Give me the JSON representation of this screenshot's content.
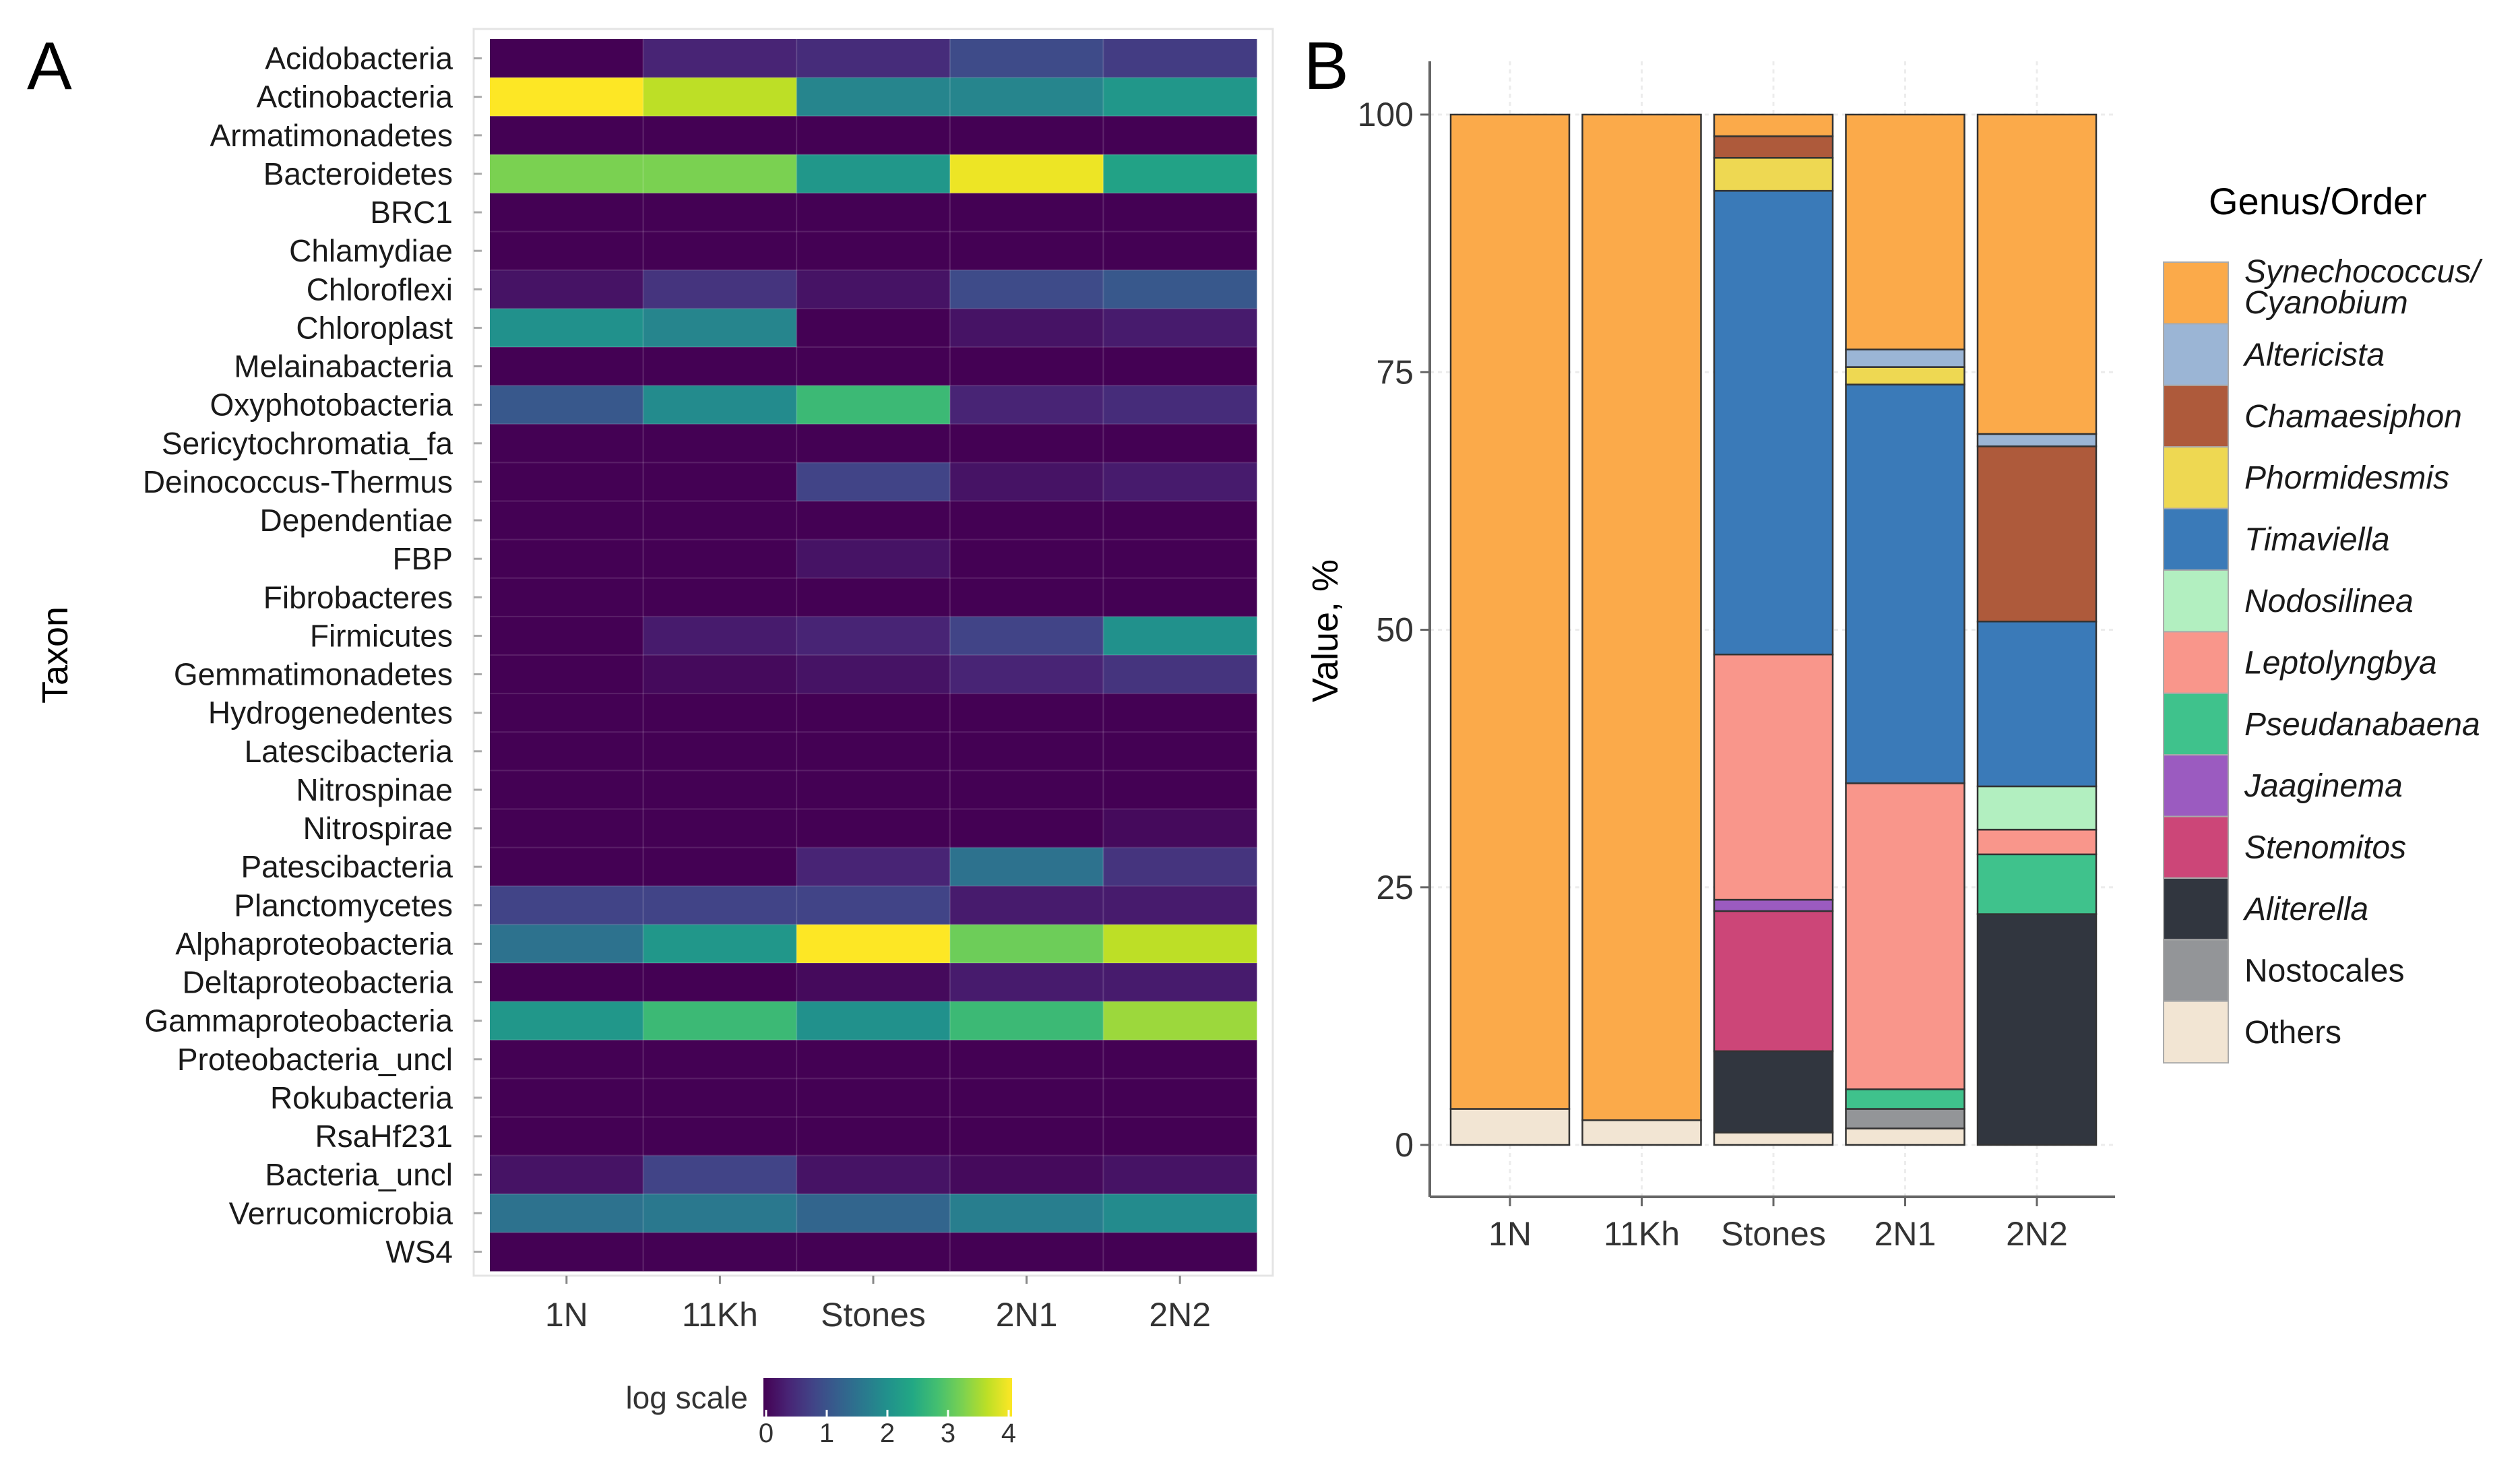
{
  "chart_data": [
    {
      "type": "heatmap",
      "panel_label": "A",
      "ylabel": "Taxon",
      "x_categories": [
        "1N",
        "11Kh",
        "Stones",
        "2N1",
        "2N2"
      ],
      "y_categories": [
        "Acidobacteria",
        "Actinobacteria",
        "Armatimonadetes",
        "Bacteroidetes",
        "BRC1",
        "Chlamydiae",
        "Chloroflexi",
        "Chloroplast",
        "Melainabacteria",
        "Oxyphotobacteria",
        "Sericytochromatia_fa",
        "Deinococcus-Thermus",
        "Dependentiae",
        "FBP",
        "Fibrobacteres",
        "Firmicutes",
        "Gemmatimonadetes",
        "Hydrogenedentes",
        "Latescibacteria",
        "Nitrospinae",
        "Nitrospirae",
        "Patescibacteria",
        "Planctomycetes",
        "Alphaproteobacteria",
        "Deltaproteobacteria",
        "Gammaproteobacteria",
        "Proteobacteria_uncl",
        "Rokubacteria",
        "RsaHf231",
        "Bacteria_uncl",
        "Verrucomicrobia",
        "WS4"
      ],
      "values": [
        [
          0,
          0.4,
          0.5,
          0.9,
          0.7
        ],
        [
          4.0,
          3.6,
          1.8,
          1.8,
          2.1
        ],
        [
          0,
          0,
          0,
          0,
          0
        ],
        [
          3.2,
          3.2,
          2.1,
          3.9,
          2.3
        ],
        [
          0,
          0,
          0,
          0,
          0
        ],
        [
          0,
          0,
          0,
          0,
          0
        ],
        [
          0.2,
          0.6,
          0.2,
          0.9,
          1.1
        ],
        [
          2.0,
          1.8,
          0,
          0.2,
          0.3
        ],
        [
          0,
          0,
          0,
          0,
          0
        ],
        [
          1.1,
          1.9,
          2.7,
          0.4,
          0.5
        ],
        [
          0,
          0,
          0,
          0,
          0
        ],
        [
          0,
          0,
          0.8,
          0.2,
          0.3
        ],
        [
          0,
          0,
          0,
          0,
          0
        ],
        [
          0,
          0,
          0.2,
          0,
          0
        ],
        [
          0,
          0,
          0,
          0,
          0
        ],
        [
          0,
          0.3,
          0.4,
          0.8,
          2.0
        ],
        [
          0,
          0.1,
          0.2,
          0.4,
          0.6
        ],
        [
          0,
          0,
          0,
          0,
          0
        ],
        [
          0,
          0,
          0,
          0,
          0
        ],
        [
          0,
          0,
          0,
          0,
          0
        ],
        [
          0,
          0,
          0,
          0,
          0.1
        ],
        [
          0,
          0,
          0.4,
          1.5,
          0.6
        ],
        [
          0.8,
          0.8,
          0.8,
          0.3,
          0.3
        ],
        [
          1.5,
          2.1,
          4.0,
          3.1,
          3.6
        ],
        [
          0,
          0,
          0.1,
          0.3,
          0.3
        ],
        [
          2.1,
          2.7,
          2.0,
          2.7,
          3.4
        ],
        [
          0,
          0,
          0,
          0,
          0
        ],
        [
          0,
          0,
          0,
          0,
          0
        ],
        [
          0,
          0,
          0,
          0,
          0
        ],
        [
          0.2,
          0.8,
          0.2,
          0.1,
          0.2
        ],
        [
          1.5,
          1.6,
          1.3,
          1.7,
          1.9
        ],
        [
          0,
          0,
          0,
          0,
          0
        ]
      ],
      "colorbar": {
        "title": "log scale",
        "range": [
          0,
          4
        ],
        "ticks": [
          "0",
          "1",
          "2",
          "3",
          "4"
        ],
        "colormap": "viridis"
      }
    },
    {
      "type": "bar",
      "stacked": true,
      "panel_label": "B",
      "ylabel": "Value, %",
      "ylim": [
        0,
        100
      ],
      "yticks": [
        "0",
        "25",
        "50",
        "75",
        "100"
      ],
      "grid": true,
      "categories": [
        "1N",
        "11Kh",
        "Stones",
        "2N1",
        "2N2"
      ],
      "legend": {
        "title": "Genus/Order",
        "placement": "right"
      },
      "series": [
        {
          "name": "Others",
          "italic": false,
          "color": "#F2E5D3",
          "values": [
            3.5,
            2.4,
            1.2,
            1.6,
            0
          ]
        },
        {
          "name": "Nostocales",
          "italic": false,
          "color": "#939598",
          "values": [
            0,
            0,
            0,
            1.9,
            0
          ]
        },
        {
          "name": "Aliterella",
          "italic": true,
          "color": "#31363F",
          "values": [
            0,
            0,
            7.9,
            0,
            22.4
          ]
        },
        {
          "name": "Stenomitos",
          "italic": true,
          "color": "#CC4678",
          "values": [
            0,
            0,
            13.6,
            0,
            0
          ]
        },
        {
          "name": "Jaaginema",
          "italic": true,
          "color": "#9B5BC0",
          "values": [
            0,
            0,
            1.1,
            0,
            0
          ]
        },
        {
          "name": "Pseudanabaena",
          "italic": true,
          "color": "#3FC28C",
          "values": [
            0,
            0,
            0,
            1.9,
            5.8
          ]
        },
        {
          "name": "Leptolyngbya",
          "italic": true,
          "color": "#F9968B",
          "values": [
            0,
            0,
            23.8,
            29.7,
            2.4
          ]
        },
        {
          "name": "Nodosilinea",
          "italic": true,
          "color": "#B2EFC0",
          "values": [
            0,
            0,
            0,
            0,
            4.2
          ]
        },
        {
          "name": "Timaviella",
          "italic": true,
          "color": "#3A7AB8",
          "values": [
            0,
            0,
            45.0,
            38.7,
            16.0
          ]
        },
        {
          "name": "Phormidesmis",
          "italic": true,
          "color": "#EED852",
          "values": [
            0,
            0,
            3.2,
            1.7,
            0
          ]
        },
        {
          "name": "Chamaesiphon",
          "italic": true,
          "color": "#AE5A3B",
          "values": [
            0,
            0,
            2.1,
            0,
            17.0
          ]
        },
        {
          "name": "Altericista",
          "italic": true,
          "color": "#9BB5D5",
          "values": [
            0,
            0,
            0,
            1.7,
            1.2
          ]
        },
        {
          "name": "Synechococcus/ Cyanobium",
          "italic": true,
          "color": "#FBAA4A",
          "values": [
            96.5,
            97.6,
            2.1,
            22.8,
            31.0
          ]
        }
      ]
    }
  ]
}
